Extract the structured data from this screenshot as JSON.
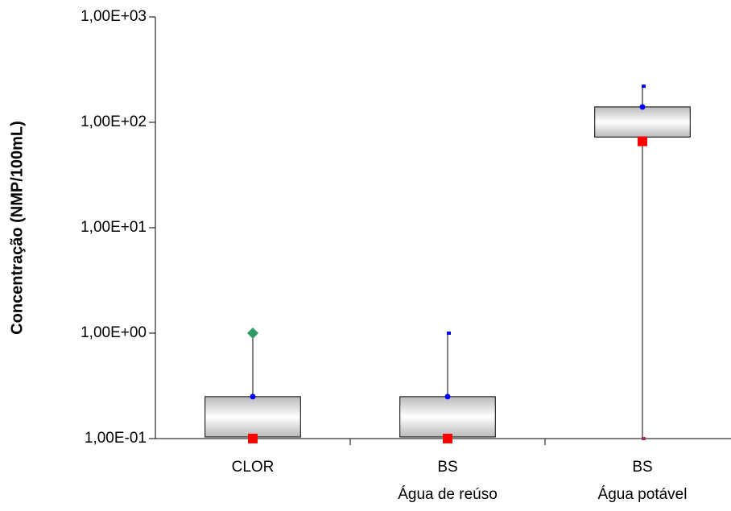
{
  "chart_data": {
    "type": "box",
    "y_label": "Concentração (NMP/100mL)",
    "log_y": true,
    "categories": [
      [
        "CLOR"
      ],
      [
        "BS",
        "Água de reúso"
      ],
      [
        "BS",
        "Água potável"
      ]
    ],
    "box_low": [
      0.1,
      0.1,
      70
    ],
    "box_high": [
      0.25,
      0.25,
      140
    ],
    "whisker_low": [
      0.1,
      0.1,
      0.1
    ],
    "whisker_high": [
      1,
      1,
      220
    ],
    "markers": [
      {
        "shape": "diamond",
        "color": "#339966",
        "values": [
          1,
          null,
          null
        ]
      },
      {
        "shape": "small-square",
        "color": "#0000ff",
        "values": [
          null,
          1,
          220
        ]
      },
      {
        "shape": "circle",
        "color": "#0000ff",
        "values": [
          0.25,
          0.25,
          140
        ]
      },
      {
        "shape": "square",
        "color": "#ff0000",
        "values": [
          0.1,
          0.1,
          66
        ]
      },
      {
        "shape": "small-square",
        "color": "#993366",
        "values": [
          null,
          null,
          0.1
        ]
      }
    ],
    "ylim": [
      0.1,
      1000
    ],
    "yticks": [
      {
        "value": 0.1,
        "label": "1,00E-01"
      },
      {
        "value": 1,
        "label": "1,00E+00"
      },
      {
        "value": 10,
        "label": "1,00E+01"
      },
      {
        "value": 100,
        "label": "1,00E+02"
      },
      {
        "value": 1000,
        "label": "1,00E+03"
      }
    ]
  }
}
